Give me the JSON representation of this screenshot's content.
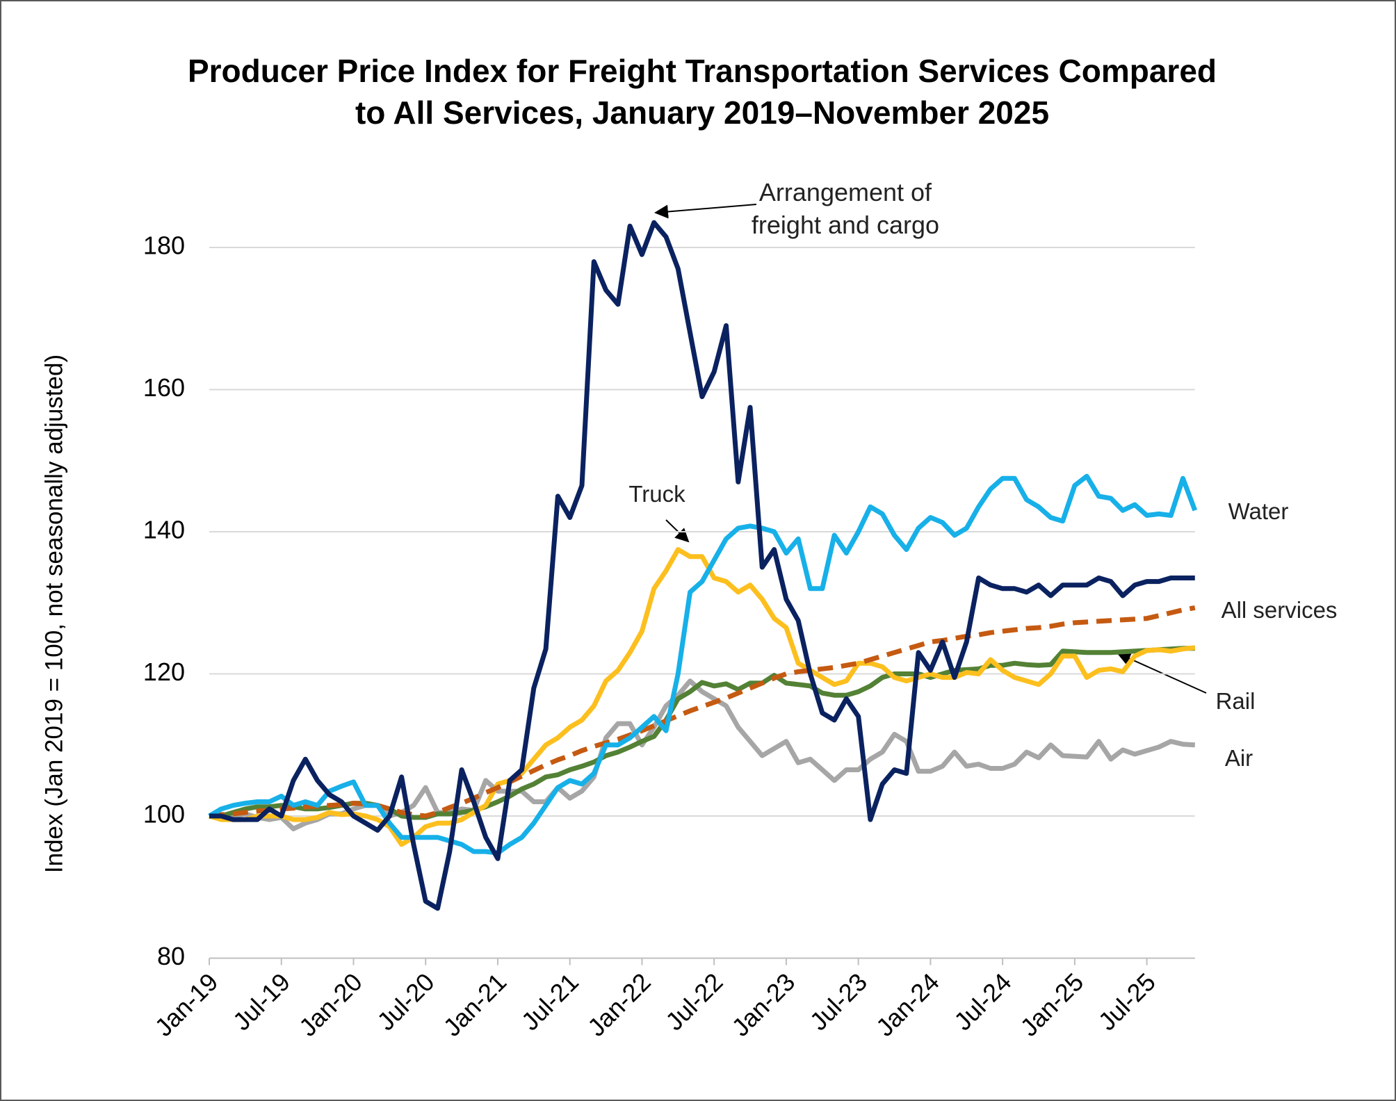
{
  "chart_data": {
    "type": "line",
    "title": "Producer Price Index for Freight Transportation Services Compared to All Services, January 2019–November 2025",
    "y_label": "Index (Jan 2019 = 100, not seasonally adjusted)",
    "categories": [
      "Jan-19",
      null,
      null,
      null,
      null,
      null,
      "Jul-19",
      null,
      null,
      null,
      null,
      null,
      "Jan-20",
      null,
      null,
      null,
      null,
      null,
      "Jul-20",
      null,
      null,
      null,
      null,
      null,
      "Jan-21",
      null,
      null,
      null,
      null,
      null,
      "Jul-21",
      null,
      null,
      null,
      null,
      null,
      "Jan-22",
      null,
      null,
      null,
      null,
      null,
      "Jul-22",
      null,
      null,
      null,
      null,
      null,
      "Jan-23",
      null,
      null,
      null,
      null,
      null,
      "Jul-23",
      null,
      null,
      null,
      null,
      null,
      "Jan-24",
      null,
      null,
      null,
      null,
      null,
      "Jul-24",
      null,
      null,
      null,
      null,
      null,
      "Jan-25",
      null,
      null,
      null,
      null,
      null,
      "Jul-25",
      null,
      null,
      null,
      null
    ],
    "ylim": [
      80,
      180
    ],
    "yticks": [
      80,
      100,
      120,
      140,
      160,
      180
    ],
    "grid": true,
    "series": [
      {
        "name": "Arrangement of freight and cargo",
        "color": "#0b2260",
        "line_style": "solid",
        "values": [
          100,
          100,
          99.5,
          99.5,
          99.5,
          101,
          100,
          105,
          108,
          105,
          103,
          102,
          100,
          99,
          98,
          100,
          105.5,
          96,
          88,
          87,
          95,
          106.5,
          102,
          97,
          94,
          105,
          106.5,
          118,
          123.5,
          145,
          142,
          146.5,
          178,
          174,
          172,
          183,
          179,
          183.5,
          181.5,
          177,
          168,
          159,
          162.5,
          169,
          147,
          157.5,
          135,
          137.5,
          130.5,
          127.5,
          120,
          114.5,
          113.5,
          116.5,
          114,
          99.5,
          104.5,
          106.5,
          106,
          123,
          120.5,
          124.5,
          119.5,
          124.5,
          133.5,
          132.5,
          132,
          132,
          131.5,
          132.5,
          131,
          132.5,
          132.5,
          132.5,
          133.5,
          133,
          131,
          132.5,
          133,
          133,
          133.5,
          133.5,
          133.5
        ]
      },
      {
        "name": "Water",
        "color": "#17b0e8",
        "line_style": "solid",
        "values": [
          100,
          101,
          101.5,
          101.8,
          102,
          102,
          102.8,
          101.5,
          102,
          101.5,
          103.5,
          104.2,
          104.8,
          101.5,
          101.5,
          99,
          97,
          97,
          97,
          97,
          96.5,
          96,
          95,
          95,
          94.8,
          96,
          97,
          99,
          101.5,
          104,
          105,
          104.5,
          106,
          110,
          110,
          111,
          112.5,
          114,
          112,
          120,
          131.5,
          133,
          136,
          139,
          140.5,
          140.8,
          140.5,
          140,
          137,
          139,
          132,
          132,
          139.5,
          137,
          140,
          143.5,
          142.5,
          139.5,
          137.5,
          140.5,
          142,
          141.3,
          139.5,
          140.5,
          143.5,
          146,
          147.5,
          147.5,
          144.5,
          143.5,
          142,
          141.5,
          146.5,
          147.8,
          145,
          144.7,
          143,
          143.8,
          142.3,
          142.5,
          142.3,
          147.5,
          143
        ]
      },
      {
        "name": "Truck",
        "color": "#fcbf1e",
        "line_style": "solid",
        "values": [
          100,
          99.5,
          99.5,
          99.5,
          100,
          100,
          100,
          99.5,
          99.5,
          99.8,
          100.5,
          100.2,
          100.3,
          100,
          99.5,
          98.5,
          96,
          97,
          98.5,
          99,
          99,
          99.5,
          100.5,
          101.5,
          104.5,
          105,
          106,
          108,
          110,
          111,
          112.5,
          113.5,
          115.5,
          119,
          120.5,
          123,
          126,
          132,
          134.5,
          137.5,
          136.5,
          136.5,
          133.5,
          133,
          131.5,
          132.5,
          130.5,
          127.8,
          126.5,
          121.5,
          120.5,
          119.5,
          118.5,
          119,
          121.5,
          121.5,
          121,
          119.5,
          119,
          119.5,
          120,
          119.5,
          119.5,
          120.2,
          120,
          122,
          120.5,
          119.5,
          119,
          118.5,
          120,
          122.5,
          122.5,
          119.5,
          120.5,
          120.7,
          120.3,
          122.5,
          123.3,
          123.4,
          123.2,
          123.5,
          123.7
        ]
      },
      {
        "name": "All services",
        "color": "#c55a11",
        "line_style": "dashed",
        "values": [
          100,
          100.2,
          100.3,
          100.5,
          100.7,
          100.8,
          101,
          101.1,
          101.3,
          101.4,
          101.5,
          101.6,
          101.8,
          101.7,
          101.5,
          101,
          100.5,
          100.2,
          100,
          100.5,
          101.2,
          101.8,
          102.5,
          103.3,
          104,
          104.8,
          105.6,
          106.4,
          107.2,
          107.9,
          108.5,
          109.2,
          109.8,
          110.3,
          110.8,
          111.4,
          112,
          112.7,
          113.4,
          114.1,
          114.8,
          115.4,
          116,
          116.6,
          117.3,
          118,
          118.7,
          119.4,
          120,
          120.3,
          120.5,
          120.7,
          120.9,
          121.2,
          121.5,
          122,
          122.5,
          123,
          123.5,
          124,
          124.5,
          124.7,
          125,
          125.3,
          125.5,
          125.8,
          126,
          126.2,
          126.4,
          126.5,
          126.7,
          127,
          127.2,
          127.3,
          127.4,
          127.5,
          127.6,
          127.7,
          127.8,
          128.2,
          128.6,
          129,
          129.3
        ]
      },
      {
        "name": "Rail",
        "color": "#538135",
        "line_style": "solid",
        "values": [
          100,
          100,
          100.5,
          101,
          101.3,
          101.3,
          101.5,
          101.3,
          101,
          101,
          101.2,
          101.5,
          101.8,
          101.8,
          101.5,
          101,
          100,
          99.8,
          99.8,
          100.3,
          100.3,
          100.5,
          100.8,
          101.3,
          102,
          102.8,
          103.8,
          104.5,
          105.5,
          105.8,
          106.5,
          107,
          107.6,
          108.5,
          109,
          109.7,
          110.5,
          111.2,
          113.5,
          116.5,
          117.5,
          118.8,
          118.3,
          118.6,
          117.8,
          118.7,
          118.7,
          119.8,
          118.7,
          118.5,
          118.3,
          117.3,
          117,
          117,
          117.5,
          118.3,
          119.5,
          120,
          120,
          120,
          119.5,
          120,
          120.5,
          120.6,
          120.7,
          121.2,
          121.2,
          121.5,
          121.3,
          121.2,
          121.3,
          123.2,
          123.1,
          123,
          123,
          123,
          123.1,
          123.2,
          123.3,
          123.4,
          123.5,
          123.6,
          123.6
        ]
      },
      {
        "name": "Air",
        "color": "#a6a6a6",
        "line_style": "solid",
        "values": [
          100,
          100,
          100,
          100.3,
          99.8,
          99.5,
          99.8,
          98.2,
          99,
          99.5,
          100.3,
          100.3,
          101,
          101.5,
          101.5,
          100,
          100.5,
          101.5,
          104,
          100.5,
          100.5,
          101,
          100.8,
          105,
          103.5,
          103.5,
          103.5,
          102,
          102,
          104,
          102.5,
          103.5,
          105.5,
          111,
          113,
          113,
          110,
          112.5,
          115.5,
          117,
          119,
          117.5,
          116.5,
          115.5,
          112.5,
          110.5,
          108.5,
          109.5,
          110.5,
          107.5,
          108,
          106.5,
          105,
          106.5,
          106.5,
          108,
          109,
          111.5,
          110.5,
          106.3,
          106.3,
          107,
          109,
          107,
          107.3,
          106.7,
          106.7,
          107.3,
          109,
          108.2,
          110,
          108.5,
          108.4,
          108.3,
          110.5,
          108,
          109.3,
          108.7,
          109.2,
          109.7,
          110.5,
          110.1,
          110
        ]
      }
    ]
  }
}
